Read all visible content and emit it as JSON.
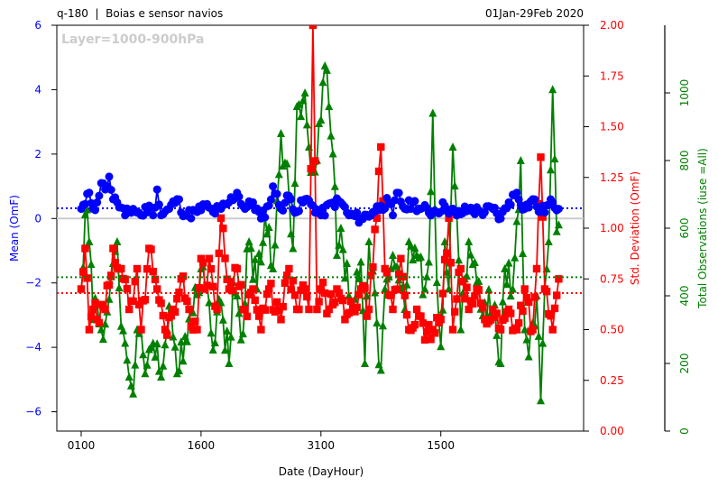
{
  "header": {
    "left_title": "q-180  |  Boias e sensor navios",
    "right_title": "01Jan-29Feb 2020",
    "layer_label": "Layer=1000-900hPa"
  },
  "colors": {
    "mean": "#0000ff",
    "stddev": "#ff0000",
    "count": "#008000",
    "zero_line": "#cccccc",
    "layer_label": "#cccccc"
  },
  "chart_data": {
    "type": "line",
    "title": "q-180  |  Boias e sensor navios",
    "xlabel": "Date (DayHour)",
    "x_ticks": [
      {
        "label": "0100",
        "index": 0
      },
      {
        "label": "1600",
        "index": 60
      },
      {
        "label": "3100",
        "index": 120
      },
      {
        "label": "1500",
        "index": 180
      }
    ],
    "n_points": 240,
    "axes": {
      "left": {
        "label": "Mean (OmF)",
        "ylim": [
          -6.6,
          6.0
        ],
        "ticks": [
          -6,
          -4,
          -2,
          0,
          2,
          4,
          6
        ],
        "tick_labels": [
          "−6",
          "−4",
          "−2",
          "0",
          "2",
          "4",
          "6"
        ],
        "color": "#0000ff"
      },
      "right": {
        "label": "Std. Deviation (OmF)",
        "ylim": [
          0.0,
          2.0
        ],
        "ticks": [
          0,
          0.25,
          0.5,
          0.75,
          1.0,
          1.25,
          1.5,
          1.75,
          2.0
        ],
        "tick_labels": [
          "0.00",
          "0.25",
          "0.50",
          "0.75",
          "1.00",
          "1.25",
          "1.50",
          "1.75",
          "2.00"
        ],
        "color": "#ff0000"
      },
      "far": {
        "label": "Total Observations (iuse =All)",
        "ylim": [
          0,
          1200
        ],
        "ticks": [
          0,
          200,
          400,
          600,
          800,
          1000
        ],
        "tick_labels": [
          "0",
          "200",
          "400",
          "600",
          "800",
          "1000"
        ],
        "color": "#008000"
      }
    },
    "reference_lines": {
      "mean_avg": 0.32,
      "stddev_avg": 0.68,
      "count_avg": 455
    },
    "series": [
      {
        "name": "Mean (OmF)",
        "axis": "left",
        "marker": "circle",
        "keyframes": [
          [
            0,
            0.3
          ],
          [
            2,
            0.45
          ],
          [
            4,
            0.8
          ],
          [
            6,
            0.3
          ],
          [
            8,
            0.5
          ],
          [
            10,
            1.1
          ],
          [
            12,
            0.9
          ],
          [
            14,
            1.3
          ],
          [
            16,
            0.6
          ],
          [
            18,
            0.5
          ],
          [
            22,
            0.1
          ],
          [
            26,
            0.3
          ],
          [
            30,
            0.1
          ],
          [
            34,
            0.4
          ],
          [
            36,
            0.1
          ],
          [
            38,
            0.9
          ],
          [
            40,
            0.1
          ],
          [
            44,
            0.3
          ],
          [
            48,
            0.6
          ],
          [
            52,
            0.1
          ],
          [
            58,
            0.2
          ],
          [
            62,
            0.4
          ],
          [
            66,
            0.2
          ],
          [
            70,
            0.3
          ],
          [
            74,
            0.5
          ],
          [
            78,
            0.8
          ],
          [
            82,
            0.3
          ],
          [
            86,
            0.5
          ],
          [
            90,
            0.0
          ],
          [
            94,
            0.4
          ],
          [
            96,
            1.0
          ],
          [
            100,
            0.3
          ],
          [
            104,
            0.7
          ],
          [
            108,
            0.2
          ],
          [
            112,
            0.6
          ],
          [
            116,
            0.4
          ],
          [
            120,
            0.1
          ],
          [
            126,
            0.5
          ],
          [
            130,
            0.5
          ],
          [
            134,
            0.1
          ],
          [
            140,
            0.0
          ],
          [
            146,
            0.2
          ],
          [
            150,
            0.4
          ],
          [
            154,
            0.5
          ],
          [
            156,
            0.1
          ],
          [
            158,
            0.8
          ],
          [
            162,
            0.3
          ],
          [
            166,
            0.5
          ],
          [
            170,
            0.3
          ],
          [
            176,
            0.2
          ],
          [
            182,
            0.4
          ],
          [
            188,
            0.1
          ],
          [
            194,
            0.3
          ],
          [
            200,
            0.2
          ],
          [
            206,
            0.3
          ],
          [
            210,
            0.0
          ],
          [
            214,
            0.5
          ],
          [
            218,
            0.8
          ],
          [
            222,
            0.3
          ],
          [
            226,
            0.6
          ],
          [
            230,
            0.2
          ],
          [
            236,
            0.5
          ],
          [
            239,
            0.3
          ]
        ],
        "values": []
      },
      {
        "name": "Std. Deviation (OmF)",
        "axis": "right",
        "marker": "square",
        "keyframes": [
          [
            0,
            0.7
          ],
          [
            2,
            0.9
          ],
          [
            4,
            0.5
          ],
          [
            6,
            0.6
          ],
          [
            8,
            0.55
          ],
          [
            12,
            0.6
          ],
          [
            16,
            0.9
          ],
          [
            20,
            0.8
          ],
          [
            24,
            0.6
          ],
          [
            28,
            0.8
          ],
          [
            30,
            0.5
          ],
          [
            34,
            0.9
          ],
          [
            38,
            0.7
          ],
          [
            42,
            0.5
          ],
          [
            46,
            0.6
          ],
          [
            50,
            0.75
          ],
          [
            54,
            0.6
          ],
          [
            58,
            0.5
          ],
          [
            60,
            0.85
          ],
          [
            62,
            0.7
          ],
          [
            64,
            0.85
          ],
          [
            68,
            0.6
          ],
          [
            70,
            1.05
          ],
          [
            74,
            0.7
          ],
          [
            78,
            0.8
          ],
          [
            82,
            0.6
          ],
          [
            86,
            0.7
          ],
          [
            90,
            0.5
          ],
          [
            94,
            0.7
          ],
          [
            100,
            0.55
          ],
          [
            104,
            0.8
          ],
          [
            108,
            0.6
          ],
          [
            112,
            0.7
          ],
          [
            114,
            0.6
          ],
          [
            116,
            2.0
          ],
          [
            118,
            0.6
          ],
          [
            120,
            0.7
          ],
          [
            124,
            0.6
          ],
          [
            128,
            0.7
          ],
          [
            132,
            0.55
          ],
          [
            136,
            0.6
          ],
          [
            140,
            0.7
          ],
          [
            144,
            0.6
          ],
          [
            148,
            1.05
          ],
          [
            150,
            1.4
          ],
          [
            152,
            0.8
          ],
          [
            156,
            0.6
          ],
          [
            160,
            0.85
          ],
          [
            164,
            0.5
          ],
          [
            168,
            0.6
          ],
          [
            172,
            0.45
          ],
          [
            176,
            0.5
          ],
          [
            180,
            0.55
          ],
          [
            184,
            1.05
          ],
          [
            186,
            0.5
          ],
          [
            190,
            0.8
          ],
          [
            194,
            0.6
          ],
          [
            198,
            0.7
          ],
          [
            202,
            0.55
          ],
          [
            206,
            0.6
          ],
          [
            210,
            0.5
          ],
          [
            214,
            0.6
          ],
          [
            218,
            0.5
          ],
          [
            222,
            0.7
          ],
          [
            226,
            0.5
          ],
          [
            228,
            0.8
          ],
          [
            230,
            1.35
          ],
          [
            232,
            0.7
          ],
          [
            236,
            0.5
          ],
          [
            239,
            0.75
          ]
        ],
        "values": []
      },
      {
        "name": "Total Observations (iuse =All)",
        "axis": "far",
        "marker": "triangle",
        "keyframes": [
          [
            0,
            420
          ],
          [
            2,
            640
          ],
          [
            4,
            560
          ],
          [
            6,
            330
          ],
          [
            8,
            380
          ],
          [
            10,
            300
          ],
          [
            14,
            390
          ],
          [
            18,
            560
          ],
          [
            20,
            310
          ],
          [
            22,
            260
          ],
          [
            24,
            160
          ],
          [
            26,
            110
          ],
          [
            28,
            300
          ],
          [
            30,
            300
          ],
          [
            32,
            170
          ],
          [
            36,
            260
          ],
          [
            40,
            160
          ],
          [
            44,
            370
          ],
          [
            48,
            170
          ],
          [
            52,
            280
          ],
          [
            56,
            350
          ],
          [
            60,
            480
          ],
          [
            64,
            380
          ],
          [
            66,
            240
          ],
          [
            70,
            380
          ],
          [
            74,
            200
          ],
          [
            76,
            440
          ],
          [
            80,
            270
          ],
          [
            84,
            560
          ],
          [
            88,
            420
          ],
          [
            92,
            640
          ],
          [
            96,
            480
          ],
          [
            100,
            880
          ],
          [
            104,
            700
          ],
          [
            106,
            540
          ],
          [
            108,
            960
          ],
          [
            112,
            1000
          ],
          [
            114,
            840
          ],
          [
            116,
            780
          ],
          [
            120,
            920
          ],
          [
            122,
            1080
          ],
          [
            124,
            960
          ],
          [
            126,
            820
          ],
          [
            128,
            520
          ],
          [
            130,
            600
          ],
          [
            134,
            400
          ],
          [
            136,
            360
          ],
          [
            140,
            500
          ],
          [
            142,
            200
          ],
          [
            144,
            560
          ],
          [
            148,
            320
          ],
          [
            150,
            180
          ],
          [
            152,
            420
          ],
          [
            156,
            520
          ],
          [
            160,
            420
          ],
          [
            162,
            360
          ],
          [
            164,
            560
          ],
          [
            168,
            520
          ],
          [
            172,
            420
          ],
          [
            174,
            500
          ],
          [
            176,
            940
          ],
          [
            178,
            440
          ],
          [
            180,
            250
          ],
          [
            182,
            560
          ],
          [
            184,
            420
          ],
          [
            186,
            840
          ],
          [
            188,
            640
          ],
          [
            190,
            300
          ],
          [
            194,
            560
          ],
          [
            198,
            440
          ],
          [
            202,
            380
          ],
          [
            206,
            360
          ],
          [
            210,
            200
          ],
          [
            212,
            480
          ],
          [
            216,
            420
          ],
          [
            218,
            620
          ],
          [
            220,
            800
          ],
          [
            222,
            300
          ],
          [
            224,
            220
          ],
          [
            228,
            400
          ],
          [
            230,
            90
          ],
          [
            232,
            420
          ],
          [
            234,
            560
          ],
          [
            236,
            1010
          ],
          [
            238,
            590
          ],
          [
            239,
            610
          ]
        ],
        "values": []
      }
    ]
  }
}
